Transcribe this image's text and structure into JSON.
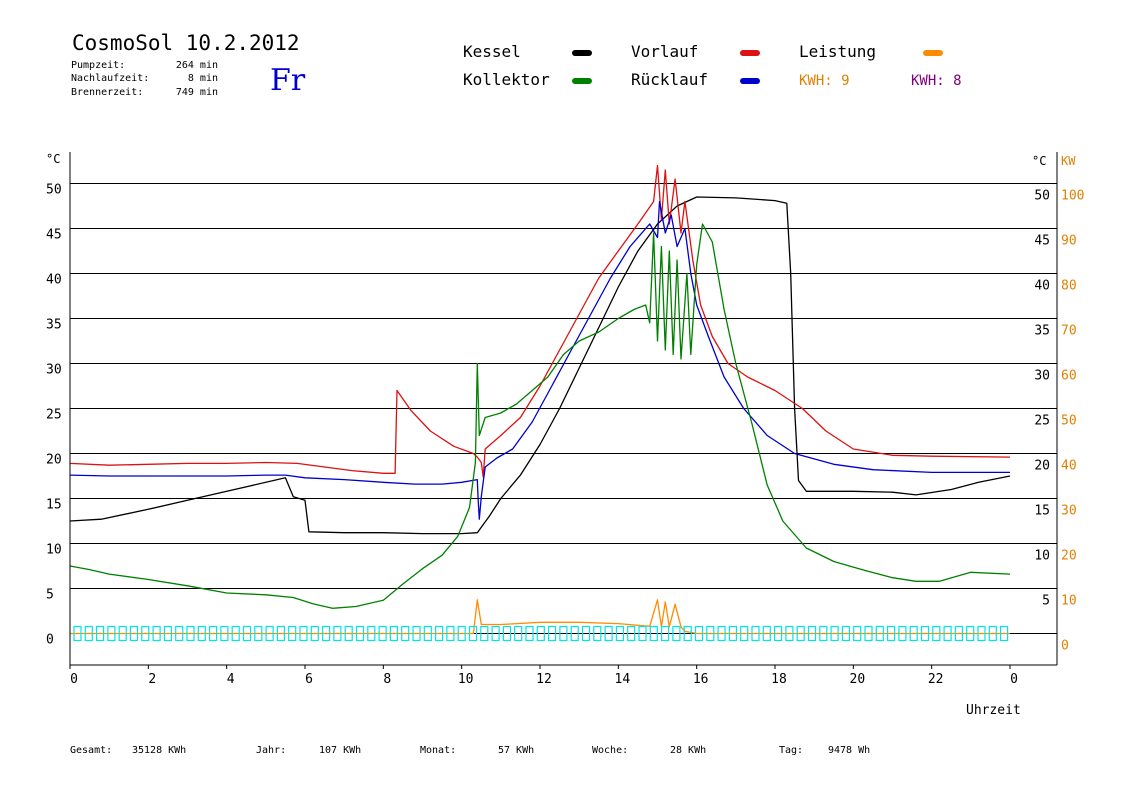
{
  "header": {
    "title": "CosmoSol 10.2.2012",
    "day": "Fr",
    "info": [
      {
        "label": "Pumpzeit:",
        "value": "264 min"
      },
      {
        "label": "Nachlaufzeit:",
        "value": "8 min"
      },
      {
        "label": "Brennerzeit:",
        "value": "749 min"
      }
    ]
  },
  "legend": {
    "items": [
      {
        "label": "Kessel",
        "color": "#000000"
      },
      {
        "label": "Vorlauf",
        "color": "#dd1111"
      },
      {
        "label": "Leistung",
        "color": "#ff8c00"
      },
      {
        "label": "Kollektor",
        "color": "#008000"
      },
      {
        "label": "Rücklauf",
        "color": "#0000cc"
      }
    ],
    "kwh": [
      {
        "label": "KWH: 9",
        "color": "#e08000"
      },
      {
        "label": "KWH: 8",
        "color": "#800080"
      }
    ]
  },
  "axes": {
    "left_unit": "°C",
    "right_unit_temp": "°C",
    "right_unit_power": "KW",
    "x_title": "Uhrzeit"
  },
  "footer": [
    {
      "label": "Gesamt:",
      "value": "35128 KWh"
    },
    {
      "label": "Jahr:",
      "value": "107 KWh"
    },
    {
      "label": "Monat:",
      "value": "57 KWh"
    },
    {
      "label": "Woche:",
      "value": "28 KWh"
    },
    {
      "label": "Tag:",
      "value": "9478 Wh"
    }
  ],
  "chart_data": {
    "type": "line",
    "x_label": "Uhrzeit",
    "x_ticks": [
      "0",
      "2",
      "4",
      "6",
      "8",
      "10",
      "12",
      "14",
      "16",
      "18",
      "20",
      "22",
      "0"
    ],
    "xlim": [
      0,
      24
    ],
    "y_left": {
      "label": "°C",
      "ticks": [
        0,
        5,
        10,
        15,
        20,
        25,
        30,
        35,
        40,
        45,
        50
      ],
      "ylim": [
        -3.5,
        53.5
      ]
    },
    "y_right_temp": {
      "label": "°C",
      "ticks": [
        5,
        10,
        15,
        20,
        25,
        30,
        35,
        40,
        45,
        50
      ]
    },
    "y_right_power": {
      "label": "KW",
      "ticks": [
        0,
        10,
        20,
        30,
        40,
        50,
        60,
        70,
        80,
        90,
        100
      ],
      "ylim": [
        -7,
        107
      ]
    },
    "grid": true,
    "series": [
      {
        "name": "Kessel",
        "color": "#000000",
        "points": [
          [
            0,
            12.5
          ],
          [
            0.8,
            12.7
          ],
          [
            2,
            13.8
          ],
          [
            3,
            14.8
          ],
          [
            4.2,
            16.0
          ],
          [
            5.5,
            17.3
          ],
          [
            5.7,
            15.2
          ],
          [
            6.0,
            14.8
          ],
          [
            6.1,
            11.3
          ],
          [
            7,
            11.2
          ],
          [
            8,
            11.2
          ],
          [
            9,
            11.1
          ],
          [
            10,
            11.1
          ],
          [
            10.4,
            11.2
          ],
          [
            10.7,
            13.0
          ],
          [
            11,
            15.0
          ],
          [
            11.5,
            17.6
          ],
          [
            12,
            21.0
          ],
          [
            12.5,
            25.0
          ],
          [
            13,
            29.5
          ],
          [
            13.5,
            34.0
          ],
          [
            14,
            38.5
          ],
          [
            14.5,
            42.5
          ],
          [
            15,
            45.5
          ],
          [
            15.5,
            47.5
          ],
          [
            16,
            48.5
          ],
          [
            17,
            48.4
          ],
          [
            18,
            48.1
          ],
          [
            18.3,
            47.8
          ],
          [
            18.4,
            40.0
          ],
          [
            18.5,
            25.0
          ],
          [
            18.6,
            17.0
          ],
          [
            18.8,
            15.8
          ],
          [
            20,
            15.8
          ],
          [
            21,
            15.7
          ],
          [
            21.6,
            15.4
          ],
          [
            22.5,
            16.0
          ],
          [
            23.2,
            16.8
          ],
          [
            24,
            17.5
          ]
        ]
      },
      {
        "name": "Vorlauf",
        "color": "#dd1111",
        "points": [
          [
            0,
            18.9
          ],
          [
            1,
            18.7
          ],
          [
            2,
            18.8
          ],
          [
            3,
            18.9
          ],
          [
            4,
            18.9
          ],
          [
            5,
            19.0
          ],
          [
            5.8,
            18.9
          ],
          [
            6.5,
            18.5
          ],
          [
            7.2,
            18.1
          ],
          [
            8,
            17.8
          ],
          [
            8.3,
            17.8
          ],
          [
            8.35,
            27.0
          ],
          [
            8.7,
            24.8
          ],
          [
            9.2,
            22.5
          ],
          [
            9.8,
            20.8
          ],
          [
            10.3,
            20.0
          ],
          [
            10.4,
            19.6
          ],
          [
            10.5,
            19.0
          ],
          [
            10.55,
            17.4
          ],
          [
            10.6,
            20.5
          ],
          [
            11,
            22.0
          ],
          [
            11.5,
            24.0
          ],
          [
            12,
            27.5
          ],
          [
            12.5,
            31.5
          ],
          [
            13,
            35.5
          ],
          [
            13.5,
            39.5
          ],
          [
            14,
            42.5
          ],
          [
            14.5,
            45.5
          ],
          [
            14.9,
            48.0
          ],
          [
            15.0,
            52.0
          ],
          [
            15.1,
            46.0
          ],
          [
            15.2,
            51.5
          ],
          [
            15.3,
            45.5
          ],
          [
            15.45,
            50.5
          ],
          [
            15.6,
            44.5
          ],
          [
            15.7,
            48.0
          ],
          [
            15.9,
            41.5
          ],
          [
            16.1,
            36.5
          ],
          [
            16.4,
            33.0
          ],
          [
            16.8,
            30.0
          ],
          [
            17.3,
            28.5
          ],
          [
            18,
            27.0
          ],
          [
            18.7,
            25.0
          ],
          [
            19.3,
            22.5
          ],
          [
            20,
            20.5
          ],
          [
            21,
            19.8
          ],
          [
            22,
            19.7
          ],
          [
            24,
            19.6
          ]
        ]
      },
      {
        "name": "Rücklauf",
        "color": "#0000cc",
        "points": [
          [
            0,
            17.6
          ],
          [
            1,
            17.5
          ],
          [
            2,
            17.5
          ],
          [
            3,
            17.5
          ],
          [
            4,
            17.5
          ],
          [
            5,
            17.6
          ],
          [
            5.5,
            17.6
          ],
          [
            6,
            17.3
          ],
          [
            7,
            17.1
          ],
          [
            8,
            16.8
          ],
          [
            8.8,
            16.6
          ],
          [
            9.5,
            16.6
          ],
          [
            10,
            16.8
          ],
          [
            10.4,
            17.1
          ],
          [
            10.42,
            15.0
          ],
          [
            10.45,
            12.7
          ],
          [
            10.5,
            15.2
          ],
          [
            10.6,
            18.5
          ],
          [
            10.9,
            19.5
          ],
          [
            11.3,
            20.5
          ],
          [
            11.8,
            23.5
          ],
          [
            12.3,
            27.5
          ],
          [
            12.8,
            31.5
          ],
          [
            13.3,
            35.5
          ],
          [
            13.8,
            39.5
          ],
          [
            14.3,
            43.0
          ],
          [
            14.8,
            45.5
          ],
          [
            15.0,
            44.0
          ],
          [
            15.05,
            48.0
          ],
          [
            15.2,
            44.5
          ],
          [
            15.35,
            46.5
          ],
          [
            15.5,
            43.0
          ],
          [
            15.7,
            45.0
          ],
          [
            15.85,
            40.0
          ],
          [
            16,
            36.5
          ],
          [
            16.3,
            33.0
          ],
          [
            16.7,
            28.5
          ],
          [
            17.2,
            25.0
          ],
          [
            17.8,
            22.0
          ],
          [
            18.5,
            20.0
          ],
          [
            19.5,
            18.8
          ],
          [
            20.5,
            18.2
          ],
          [
            22,
            17.9
          ],
          [
            24,
            17.9
          ]
        ]
      },
      {
        "name": "Kollektor",
        "color": "#008000",
        "points": [
          [
            0,
            7.5
          ],
          [
            0.5,
            7.1
          ],
          [
            1,
            6.6
          ],
          [
            2,
            6.0
          ],
          [
            3,
            5.3
          ],
          [
            4,
            4.5
          ],
          [
            5,
            4.3
          ],
          [
            5.7,
            4.0
          ],
          [
            6.2,
            3.3
          ],
          [
            6.7,
            2.8
          ],
          [
            7.3,
            3.0
          ],
          [
            8,
            3.7
          ],
          [
            8.5,
            5.5
          ],
          [
            9,
            7.2
          ],
          [
            9.5,
            8.7
          ],
          [
            9.9,
            10.8
          ],
          [
            10.2,
            14.0
          ],
          [
            10.35,
            19.0
          ],
          [
            10.4,
            30.0
          ],
          [
            10.45,
            22.0
          ],
          [
            10.6,
            24.0
          ],
          [
            11,
            24.5
          ],
          [
            11.4,
            25.5
          ],
          [
            11.8,
            27.0
          ],
          [
            12.2,
            28.5
          ],
          [
            12.6,
            31.0
          ],
          [
            13,
            32.5
          ],
          [
            13.5,
            33.5
          ],
          [
            14,
            35.0
          ],
          [
            14.4,
            36.0
          ],
          [
            14.7,
            36.5
          ],
          [
            14.8,
            34.5
          ],
          [
            14.9,
            44.5
          ],
          [
            15.0,
            32.5
          ],
          [
            15.1,
            43.0
          ],
          [
            15.2,
            31.5
          ],
          [
            15.3,
            42.5
          ],
          [
            15.4,
            31.0
          ],
          [
            15.5,
            41.5
          ],
          [
            15.6,
            30.5
          ],
          [
            15.75,
            40.0
          ],
          [
            15.85,
            31.0
          ],
          [
            16.0,
            41.0
          ],
          [
            16.15,
            45.5
          ],
          [
            16.4,
            43.5
          ],
          [
            16.7,
            36.0
          ],
          [
            17.0,
            30.0
          ],
          [
            17.4,
            23.5
          ],
          [
            17.8,
            16.5
          ],
          [
            18.2,
            12.5
          ],
          [
            18.8,
            9.5
          ],
          [
            19.5,
            8.0
          ],
          [
            20.3,
            7.0
          ],
          [
            21,
            6.2
          ],
          [
            21.6,
            5.8
          ],
          [
            22.2,
            5.8
          ],
          [
            23,
            6.8
          ],
          [
            24,
            6.6
          ]
        ]
      },
      {
        "name": "Leistung",
        "color": "#ff8c00",
        "axis": "power",
        "points": [
          [
            0,
            0
          ],
          [
            10.3,
            0
          ],
          [
            10.4,
            7.5
          ],
          [
            10.5,
            2.0
          ],
          [
            11,
            2.0
          ],
          [
            12,
            2.5
          ],
          [
            13,
            2.5
          ],
          [
            14,
            2.2
          ],
          [
            14.8,
            1.6
          ],
          [
            15.0,
            7.5
          ],
          [
            15.1,
            1.5
          ],
          [
            15.2,
            7.0
          ],
          [
            15.3,
            1.5
          ],
          [
            15.45,
            6.5
          ],
          [
            15.6,
            1.5
          ],
          [
            15.7,
            0.5
          ],
          [
            16,
            0
          ],
          [
            24,
            0
          ]
        ]
      }
    ]
  }
}
